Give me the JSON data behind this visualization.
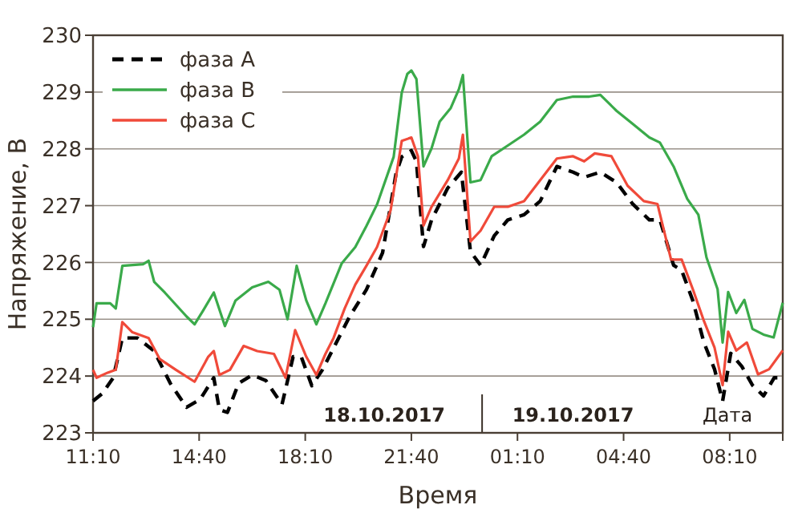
{
  "chart_data": {
    "type": "line",
    "xlabel": "Время",
    "ylabel": "Напряжение, В",
    "xlim": [
      "2017-10-18T11:10",
      "2017-10-19T09:55"
    ],
    "xticks": [
      {
        "value": "2017-10-18T11:10",
        "label": "11:10"
      },
      {
        "value": "2017-10-18T14:40",
        "label": "14:40"
      },
      {
        "value": "2017-10-18T18:10",
        "label": "18:10"
      },
      {
        "value": "2017-10-18T21:40",
        "label": "21:40"
      },
      {
        "value": "2017-10-19T01:10",
        "label": "01:10"
      },
      {
        "value": "2017-10-19T04:40",
        "label": "04:40"
      },
      {
        "value": "2017-10-19T08:10",
        "label": "08:10"
      }
    ],
    "ylim": [
      223,
      230
    ],
    "yticks": [
      223,
      224,
      225,
      226,
      227,
      228,
      229,
      230
    ],
    "grid": "y",
    "legend": "top left",
    "ref_lines": [
      {
        "axis": "x",
        "value": "2017-10-19T00:00",
        "color": "#3a3027"
      }
    ],
    "annotations": [
      "18.10.2017",
      "19.10.2017",
      "Дата"
    ],
    "series": [
      {
        "name": "фаза A",
        "color": "#000000",
        "line_style": "dashed",
        "x": [
          "2017-10-18T11:10",
          "2017-10-18T11:28",
          "2017-10-18T11:50",
          "2017-10-18T12:08",
          "2017-10-18T12:38",
          "2017-10-18T13:11",
          "2017-10-18T13:43",
          "2017-10-18T14:15",
          "2017-10-18T14:42",
          "2017-10-18T15:09",
          "2017-10-18T15:20",
          "2017-10-18T15:36",
          "2017-10-18T15:58",
          "2017-10-18T16:25",
          "2017-10-18T16:52",
          "2017-10-18T17:24",
          "2017-10-18T17:46",
          "2017-10-18T18:02",
          "2017-10-18T18:23",
          "2017-10-18T18:44",
          "2017-10-18T19:11",
          "2017-10-18T19:38",
          "2017-10-18T20:11",
          "2017-10-18T20:43",
          "2017-10-18T21:10",
          "2017-10-18T21:21",
          "2017-10-18T21:40",
          "2017-10-18T21:50",
          "2017-10-18T22:04",
          "2017-10-18T22:20",
          "2017-10-18T22:52",
          "2017-10-18T23:19",
          "2017-10-18T23:37",
          "2017-10-18T23:57",
          "2017-10-19T00:24",
          "2017-10-19T00:51",
          "2017-10-19T01:23",
          "2017-10-19T01:55",
          "2017-10-19T02:28",
          "2017-10-19T03:00",
          "2017-10-19T03:22",
          "2017-10-19T03:54",
          "2017-10-19T04:26",
          "2017-10-19T04:58",
          "2017-10-19T05:31",
          "2017-10-19T05:52",
          "2017-10-19T06:19",
          "2017-10-19T06:35",
          "2017-10-19T06:57",
          "2017-10-19T07:19",
          "2017-10-19T07:40",
          "2017-10-19T07:56",
          "2017-10-19T08:12",
          "2017-10-19T08:34",
          "2017-10-19T08:55",
          "2017-10-19T09:17",
          "2017-10-19T09:38",
          "2017-10-19T09:55"
        ],
        "values": [
          223.56,
          223.69,
          223.97,
          224.67,
          224.67,
          224.44,
          223.87,
          223.45,
          223.59,
          223.97,
          223.41,
          223.36,
          223.87,
          224.02,
          223.92,
          223.5,
          224.34,
          224.34,
          223.83,
          224.11,
          224.58,
          225.05,
          225.52,
          226.17,
          227.58,
          227.86,
          227.97,
          227.78,
          226.28,
          226.75,
          227.31,
          227.59,
          226.19,
          225.95,
          226.47,
          226.75,
          226.84,
          227.08,
          227.69,
          227.59,
          227.5,
          227.59,
          227.41,
          227.03,
          226.75,
          226.75,
          225.95,
          225.86,
          225.33,
          224.59,
          224.12,
          223.56,
          224.4,
          224.17,
          223.84,
          223.65,
          223.97,
          223.97
        ]
      },
      {
        "name": "фаза B",
        "color": "#3aaa4a",
        "line_style": "solid",
        "x": [
          "2017-10-18T11:10",
          "2017-10-18T11:17",
          "2017-10-18T11:44",
          "2017-10-18T11:55",
          "2017-10-18T12:08",
          "2017-10-18T12:49",
          "2017-10-18T13:00",
          "2017-10-18T13:11",
          "2017-10-18T13:32",
          "2017-10-18T14:15",
          "2017-10-18T14:31",
          "2017-10-18T14:47",
          "2017-10-18T15:09",
          "2017-10-18T15:31",
          "2017-10-18T15:52",
          "2017-10-18T16:25",
          "2017-10-18T16:57",
          "2017-10-18T17:19",
          "2017-10-18T17:35",
          "2017-10-18T17:53",
          "2017-10-18T18:12",
          "2017-10-18T18:32",
          "2017-10-18T18:50",
          "2017-10-18T19:22",
          "2017-10-18T19:49",
          "2017-10-18T20:11",
          "2017-10-18T20:32",
          "2017-10-18T21:05",
          "2017-10-18T21:21",
          "2017-10-18T21:32",
          "2017-10-18T21:40",
          "2017-10-18T21:50",
          "2017-10-18T22:04",
          "2017-10-18T22:20",
          "2017-10-18T22:36",
          "2017-10-18T22:58",
          "2017-10-18T23:14",
          "2017-10-18T23:22",
          "2017-10-18T23:37",
          "2017-10-18T23:57",
          "2017-10-19T00:19",
          "2017-10-19T00:51",
          "2017-10-19T01:23",
          "2017-10-19T01:55",
          "2017-10-19T02:28",
          "2017-10-19T03:00",
          "2017-10-19T03:32",
          "2017-10-19T03:54",
          "2017-10-19T04:26",
          "2017-10-19T04:58",
          "2017-10-19T05:31",
          "2017-10-19T05:52",
          "2017-10-19T06:19",
          "2017-10-19T06:46",
          "2017-10-19T07:08",
          "2017-10-19T07:24",
          "2017-10-19T07:46",
          "2017-10-19T07:56",
          "2017-10-19T08:07",
          "2017-10-19T08:23",
          "2017-10-19T08:39",
          "2017-10-19T08:55",
          "2017-10-19T09:17",
          "2017-10-19T09:37",
          "2017-10-19T09:55"
        ],
        "values": [
          224.86,
          225.28,
          225.28,
          225.19,
          225.94,
          225.97,
          226.03,
          225.66,
          225.47,
          225.05,
          224.91,
          225.14,
          225.47,
          224.88,
          225.33,
          225.56,
          225.66,
          225.52,
          225.0,
          225.94,
          225.33,
          224.91,
          225.28,
          225.98,
          226.27,
          226.64,
          227.02,
          227.86,
          228.99,
          229.32,
          229.38,
          229.23,
          227.69,
          228.01,
          228.48,
          228.72,
          229.05,
          229.3,
          227.41,
          227.45,
          227.87,
          228.06,
          228.25,
          228.48,
          228.86,
          228.92,
          228.92,
          228.95,
          228.67,
          228.44,
          228.2,
          228.11,
          227.69,
          227.12,
          226.84,
          226.09,
          225.53,
          224.59,
          225.48,
          225.11,
          225.34,
          224.83,
          224.73,
          224.68,
          225.29
        ]
      },
      {
        "name": "фаза C",
        "color": "#f04a3a",
        "line_style": "solid",
        "x": [
          "2017-10-18T11:10",
          "2017-10-18T11:17",
          "2017-10-18T11:39",
          "2017-10-18T11:55",
          "2017-10-18T12:08",
          "2017-10-18T12:28",
          "2017-10-18T13:00",
          "2017-10-18T13:22",
          "2017-10-18T13:54",
          "2017-10-18T14:31",
          "2017-10-18T14:58",
          "2017-10-18T15:09",
          "2017-10-18T15:20",
          "2017-10-18T15:41",
          "2017-10-18T16:08",
          "2017-10-18T16:35",
          "2017-10-18T17:08",
          "2017-10-18T17:31",
          "2017-10-18T17:50",
          "2017-10-18T18:12",
          "2017-10-18T18:32",
          "2017-10-18T18:50",
          "2017-10-18T19:06",
          "2017-10-18T19:28",
          "2017-10-18T19:49",
          "2017-10-18T20:11",
          "2017-10-18T20:32",
          "2017-10-18T20:59",
          "2017-10-18T21:21",
          "2017-10-18T21:40",
          "2017-10-18T21:53",
          "2017-10-18T22:04",
          "2017-10-18T22:20",
          "2017-10-18T22:52",
          "2017-10-18T23:14",
          "2017-10-18T23:22",
          "2017-10-18T23:37",
          "2017-10-18T23:57",
          "2017-10-19T00:24",
          "2017-10-19T00:51",
          "2017-10-19T01:23",
          "2017-10-19T01:55",
          "2017-10-19T02:28",
          "2017-10-19T03:00",
          "2017-10-19T03:22",
          "2017-10-19T03:43",
          "2017-10-19T04:16",
          "2017-10-19T04:48",
          "2017-10-19T05:20",
          "2017-10-19T05:47",
          "2017-10-19T06:14",
          "2017-10-19T06:35",
          "2017-10-19T06:57",
          "2017-10-19T07:19",
          "2017-10-19T07:40",
          "2017-10-19T07:56",
          "2017-10-19T08:07",
          "2017-10-19T08:23",
          "2017-10-19T08:44",
          "2017-10-19T09:06",
          "2017-10-19T09:28",
          "2017-10-19T09:55"
        ],
        "values": [
          224.11,
          223.97,
          224.06,
          224.11,
          224.95,
          224.77,
          224.67,
          224.3,
          224.11,
          223.9,
          224.34,
          224.44,
          224.02,
          224.11,
          224.53,
          224.44,
          224.39,
          223.97,
          224.81,
          224.34,
          224.02,
          224.39,
          224.67,
          225.19,
          225.61,
          225.94,
          226.27,
          226.92,
          228.14,
          228.2,
          227.87,
          226.65,
          226.98,
          227.45,
          227.83,
          228.25,
          226.37,
          226.56,
          226.98,
          226.98,
          227.08,
          227.45,
          227.83,
          227.87,
          227.78,
          227.92,
          227.87,
          227.35,
          227.08,
          227.03,
          226.05,
          226.05,
          225.53,
          224.97,
          224.5,
          223.84,
          224.78,
          224.45,
          224.59,
          224.03,
          224.12,
          224.45
        ]
      }
    ]
  }
}
